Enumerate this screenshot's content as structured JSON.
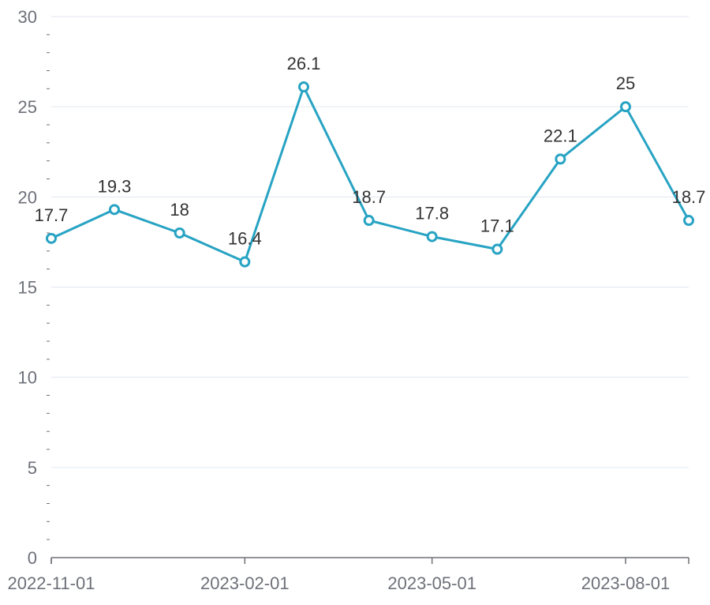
{
  "chart_data": {
    "type": "line",
    "title": "",
    "xlabel": "",
    "ylabel": "",
    "x_type": "time",
    "x_range": [
      "2022-11-01",
      "2023-08-31"
    ],
    "x_tick_labels": [
      "2022-11-01",
      "2023-02-01",
      "2023-05-01",
      "2023-08-01"
    ],
    "ylim": [
      0,
      30
    ],
    "y_tick_labels": [
      "0",
      "5",
      "10",
      "15",
      "20",
      "25",
      "30"
    ],
    "grid": true,
    "legend": "none",
    "series": [
      {
        "color": "#27a3c3",
        "points": [
          {
            "x": "2022-11-01",
            "y": 17.7,
            "label": "17.7"
          },
          {
            "x": "2022-12-01",
            "y": 19.3,
            "label": "19.3"
          },
          {
            "x": "2023-01-01",
            "y": 18,
            "label": "18"
          },
          {
            "x": "2023-02-01",
            "y": 16.4,
            "label": "16.4"
          },
          {
            "x": "2023-03-01",
            "y": 26.1,
            "label": "26.1"
          },
          {
            "x": "2023-04-01",
            "y": 18.7,
            "label": "18.7"
          },
          {
            "x": "2023-05-01",
            "y": 17.8,
            "label": "17.8"
          },
          {
            "x": "2023-06-01",
            "y": 17.1,
            "label": "17.1"
          },
          {
            "x": "2023-07-01",
            "y": 22.1,
            "label": "22.1"
          },
          {
            "x": "2023-08-01",
            "y": 25,
            "label": "25"
          },
          {
            "x": "2023-08-31",
            "y": 18.7,
            "label": "18.7"
          }
        ]
      }
    ],
    "colors": {
      "grid": "#e0e6f1",
      "axis": "#6e7079",
      "tick_text": "#6e7079",
      "label_text": "#333333",
      "marker_fill": "#ffffff"
    }
  }
}
